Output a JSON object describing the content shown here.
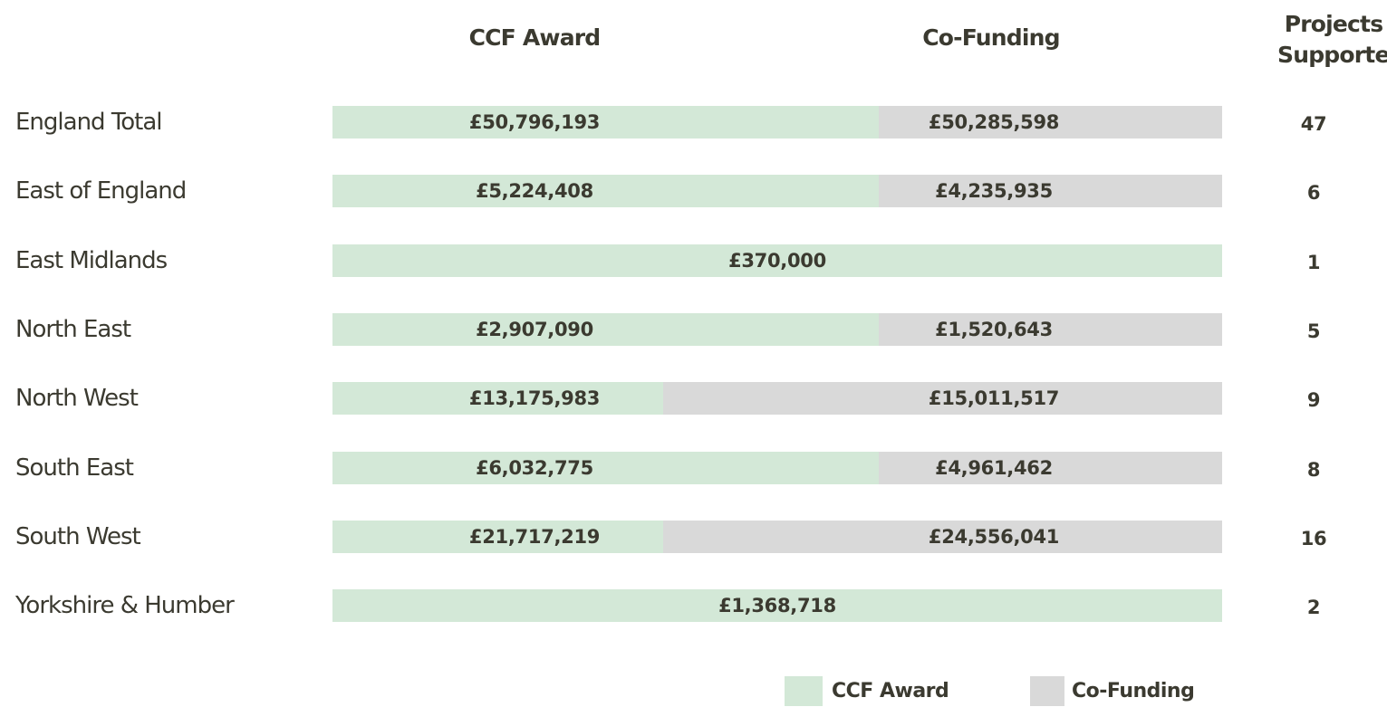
{
  "header": {
    "ccf": "CCF Award",
    "cofunding": "Co-Funding",
    "projects": "Projects Supported"
  },
  "table": {
    "rows": [
      {
        "region": "England Total",
        "ccf": "£50,796,193",
        "cofunding": "£50,285,598",
        "projects": "47"
      },
      {
        "region": "East of England",
        "ccf": "£5,224,408",
        "cofunding": "£4,235,935",
        "projects": "6"
      },
      {
        "region": "East Midlands",
        "ccf": "£370,000",
        "projects": "1"
      },
      {
        "region": "North East",
        "ccf": "£2,907,090",
        "cofunding": "£1,520,643",
        "projects": "5"
      },
      {
        "region": "North West",
        "ccf": "£13,175,983",
        "cofunding": "£15,011,517",
        "projects": "9"
      },
      {
        "region": "South East",
        "ccf": "£6,032,775",
        "cofunding": "£4,961,462",
        "projects": "8"
      },
      {
        "region": "South West",
        "ccf": "£21,717,219",
        "cofunding": "£24,556,041",
        "projects": "16"
      },
      {
        "region": "Yorkshire & Humber",
        "ccf": "£1,368,718",
        "projects": "2"
      }
    ]
  },
  "legend": {
    "ccf": "CCF Award",
    "cofunding": "Co-Funding"
  }
}
